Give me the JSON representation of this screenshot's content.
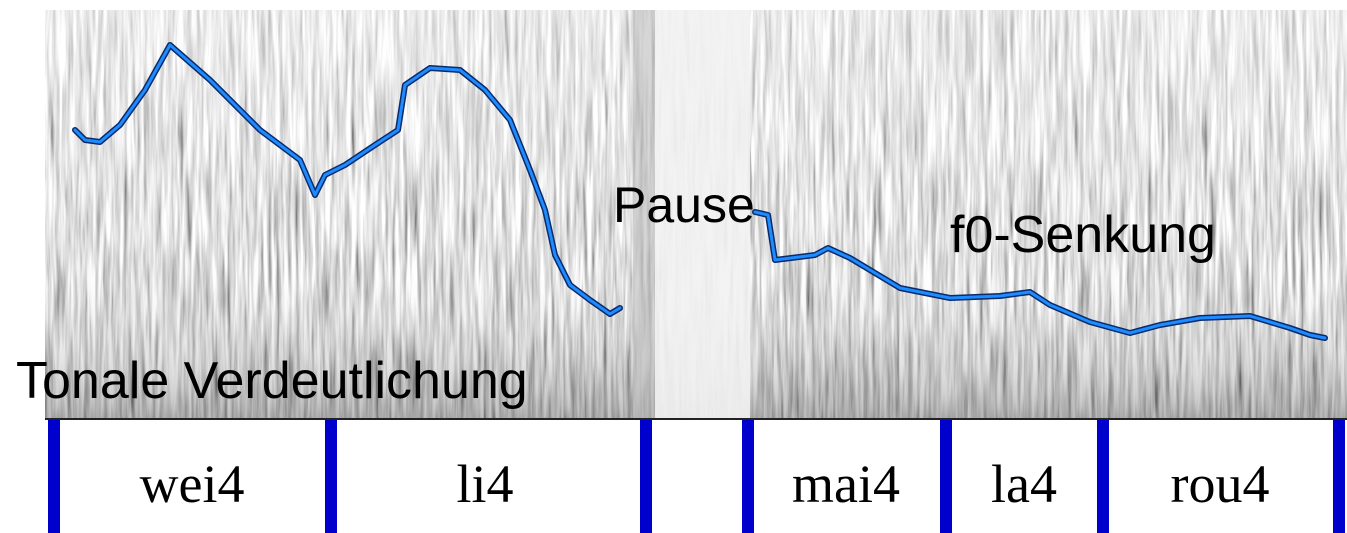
{
  "annotations": {
    "pause": "Pause",
    "f0_lowering": "f0-Senkung",
    "tonal_clarification": "Tonale Verdeutlichung"
  },
  "syllables": [
    "wei4",
    "li4",
    "mai4",
    "la4",
    "rou4"
  ]
}
